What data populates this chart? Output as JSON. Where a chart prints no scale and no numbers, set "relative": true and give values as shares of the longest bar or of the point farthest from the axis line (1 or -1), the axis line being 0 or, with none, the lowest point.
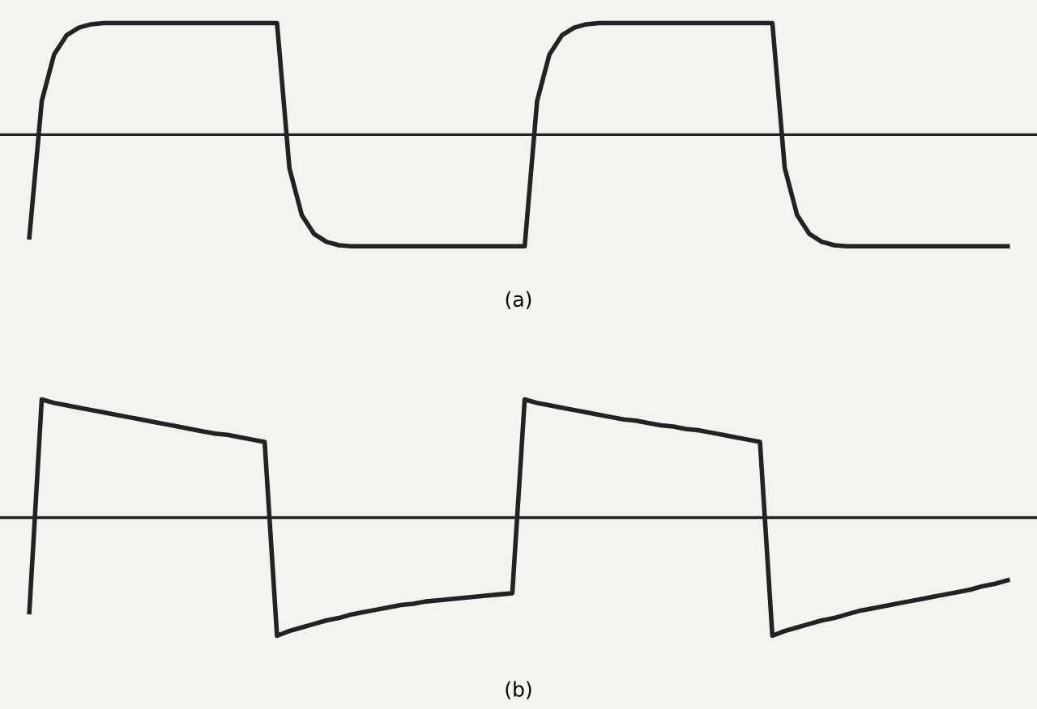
{
  "chart_data": [
    {
      "type": "line",
      "relative": true,
      "xlabel": "(a)",
      "tick_labels": false,
      "categories": [
        null,
        null,
        null,
        null,
        null,
        null,
        null,
        null,
        null,
        null,
        null,
        null,
        null,
        null,
        null,
        null,
        null,
        null,
        null,
        null,
        null,
        null,
        null,
        null,
        null,
        null,
        null,
        null,
        null,
        null,
        null,
        null,
        null,
        null,
        null,
        null,
        null,
        null,
        null,
        null,
        null,
        null,
        null,
        null,
        null,
        null,
        null,
        null,
        null,
        null,
        null,
        null,
        null,
        null,
        null,
        null,
        null,
        null,
        null,
        null,
        null,
        null,
        null,
        null,
        null,
        null,
        null,
        null,
        null,
        null,
        null,
        null,
        null,
        null,
        null,
        null,
        null,
        null,
        null,
        null
      ],
      "series": [
        {
          "color": "#222222",
          "values": [
            -0.92,
            0.3,
            0.72,
            0.89,
            0.96,
            0.99,
            1,
            1,
            1,
            1,
            1,
            1,
            1,
            1,
            1,
            1,
            1,
            1,
            1,
            1,
            1,
            -0.3,
            -0.72,
            -0.89,
            -0.96,
            -0.99,
            -1,
            -1,
            -1,
            -1,
            -1,
            -1,
            -1,
            -1,
            -1,
            -1,
            -1,
            -1,
            -1,
            -1,
            -1,
            0.3,
            0.72,
            0.89,
            0.96,
            0.99,
            1,
            1,
            1,
            1,
            1,
            1,
            1,
            1,
            1,
            1,
            1,
            1,
            1,
            1,
            1,
            -0.3,
            -0.72,
            -0.89,
            -0.96,
            -0.99,
            -1,
            -1,
            -1,
            -1,
            -1,
            -1,
            -1,
            -1,
            -1,
            -1,
            -1,
            -1,
            -1,
            -1
          ]
        }
      ]
    },
    {
      "type": "line",
      "relative": true,
      "xlabel": "(b)",
      "tick_labels": false,
      "categories": [
        null,
        null,
        null,
        null,
        null,
        null,
        null,
        null,
        null,
        null,
        null,
        null,
        null,
        null,
        null,
        null,
        null,
        null,
        null,
        null,
        null,
        null,
        null,
        null,
        null,
        null,
        null,
        null,
        null,
        null,
        null,
        null,
        null,
        null,
        null,
        null,
        null,
        null,
        null,
        null,
        null,
        null,
        null,
        null,
        null,
        null,
        null,
        null,
        null,
        null,
        null,
        null,
        null,
        null,
        null,
        null,
        null,
        null,
        null,
        null,
        null,
        null,
        null,
        null,
        null,
        null,
        null,
        null,
        null,
        null,
        null,
        null,
        null,
        null,
        null,
        null,
        null,
        null,
        null,
        null
      ],
      "series": [
        {
          "color": "#222222",
          "values": [
            -0.8,
            1,
            0.97,
            0.95,
            0.93,
            0.91,
            0.89,
            0.87,
            0.85,
            0.83,
            0.81,
            0.79,
            0.77,
            0.75,
            0.73,
            0.71,
            0.7,
            0.68,
            0.66,
            0.64,
            -1,
            -0.96,
            -0.93,
            -0.9,
            -0.87,
            -0.85,
            -0.82,
            -0.8,
            -0.78,
            -0.76,
            -0.74,
            -0.73,
            -0.71,
            -0.7,
            -0.69,
            -0.68,
            -0.67,
            -0.66,
            -0.65,
            -0.64,
            1,
            0.97,
            0.95,
            0.93,
            0.91,
            0.89,
            0.87,
            0.85,
            0.83,
            0.82,
            0.8,
            0.78,
            0.77,
            0.75,
            0.74,
            0.72,
            0.7,
            0.68,
            0.66,
            0.64,
            -1,
            -0.96,
            -0.93,
            -0.9,
            -0.87,
            -0.85,
            -0.82,
            -0.79,
            -0.77,
            -0.75,
            -0.73,
            -0.71,
            -0.69,
            -0.67,
            -0.65,
            -0.63,
            -0.61,
            -0.58,
            -0.56,
            -0.53
          ]
        }
      ]
    }
  ]
}
